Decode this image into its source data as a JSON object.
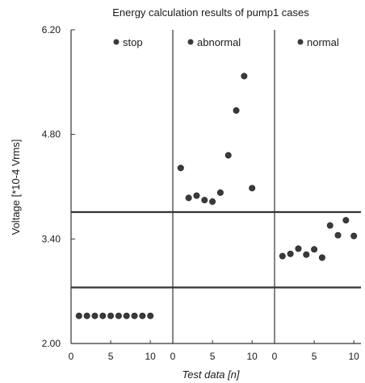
{
  "chart_data": {
    "type": "scatter",
    "title": "Energy calculation results of pump1 cases",
    "xlabel": "Test data [n]",
    "ylabel": "Voltage [*10-4 Vrms]",
    "ylim": [
      2.0,
      6.2
    ],
    "yticks": [
      "6.20",
      "4.80",
      "3.40",
      "2.00"
    ],
    "xlim": [
      0,
      11
    ],
    "xticks": [
      "0",
      "5",
      "10"
    ],
    "grid": false,
    "reference_lines": [
      3.76,
      2.75
    ],
    "marker_color": "#3a3a3a",
    "line_color": "#333333",
    "panels": [
      {
        "name": "stop",
        "x": [
          1,
          2,
          3,
          4,
          5,
          6,
          7,
          8,
          9,
          10
        ],
        "y": [
          2.37,
          2.37,
          2.37,
          2.37,
          2.37,
          2.37,
          2.37,
          2.37,
          2.37,
          2.37
        ]
      },
      {
        "name": "abnormal",
        "x": [
          1,
          2,
          3,
          4,
          5,
          6,
          7,
          8,
          9,
          10
        ],
        "y": [
          4.35,
          3.95,
          3.98,
          3.92,
          3.9,
          4.02,
          4.52,
          5.12,
          5.58,
          4.08
        ]
      },
      {
        "name": "normal",
        "x": [
          1,
          2,
          3,
          4,
          5,
          6,
          7,
          8,
          9,
          10
        ],
        "y": [
          3.17,
          3.2,
          3.27,
          3.19,
          3.26,
          3.15,
          3.58,
          3.45,
          3.65,
          3.44
        ]
      }
    ]
  }
}
